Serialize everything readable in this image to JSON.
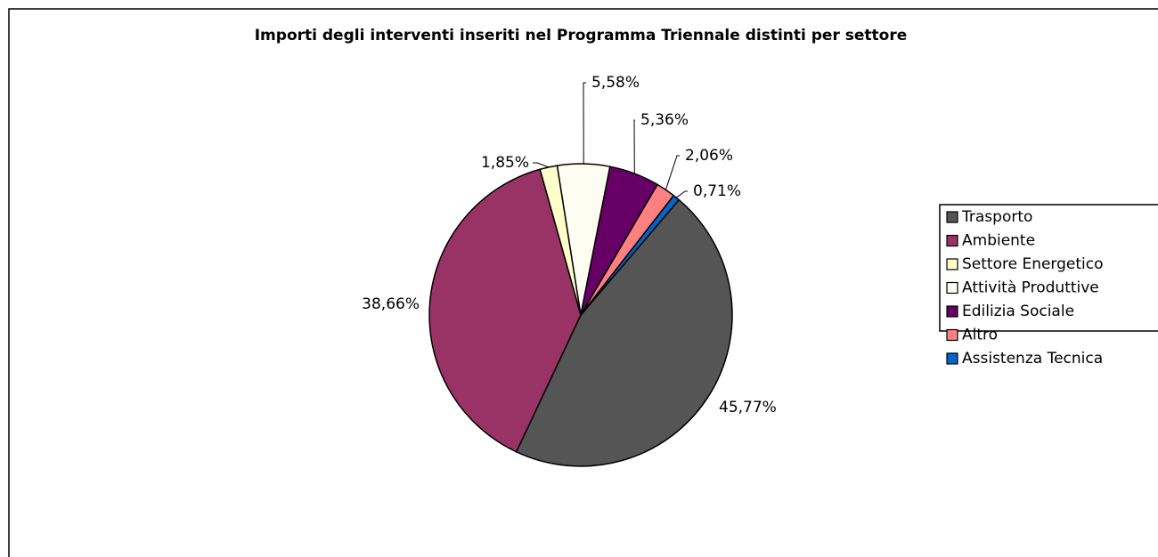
{
  "chart_data": {
    "type": "pie",
    "title": "Importi degli interventi inseriti nel Programma Triennale distinti per settore",
    "categories": [
      "Trasporto",
      "Ambiente",
      "Settore Energetico",
      "Attività Produttive",
      "Edilizia Sociale",
      "Altro",
      "Assistenza Tecnica"
    ],
    "values": [
      45.77,
      38.66,
      1.85,
      5.58,
      5.36,
      2.06,
      0.71
    ],
    "value_labels": [
      "45,77%",
      "38,66%",
      "1,85%",
      "5,58%",
      "5,36%",
      "2,06%",
      "0,71%"
    ],
    "colors": [
      "#555555",
      "#993366",
      "#ffffcc",
      "#fdfdf2",
      "#660066",
      "#ff8080",
      "#0066cc"
    ],
    "legend": "right"
  }
}
